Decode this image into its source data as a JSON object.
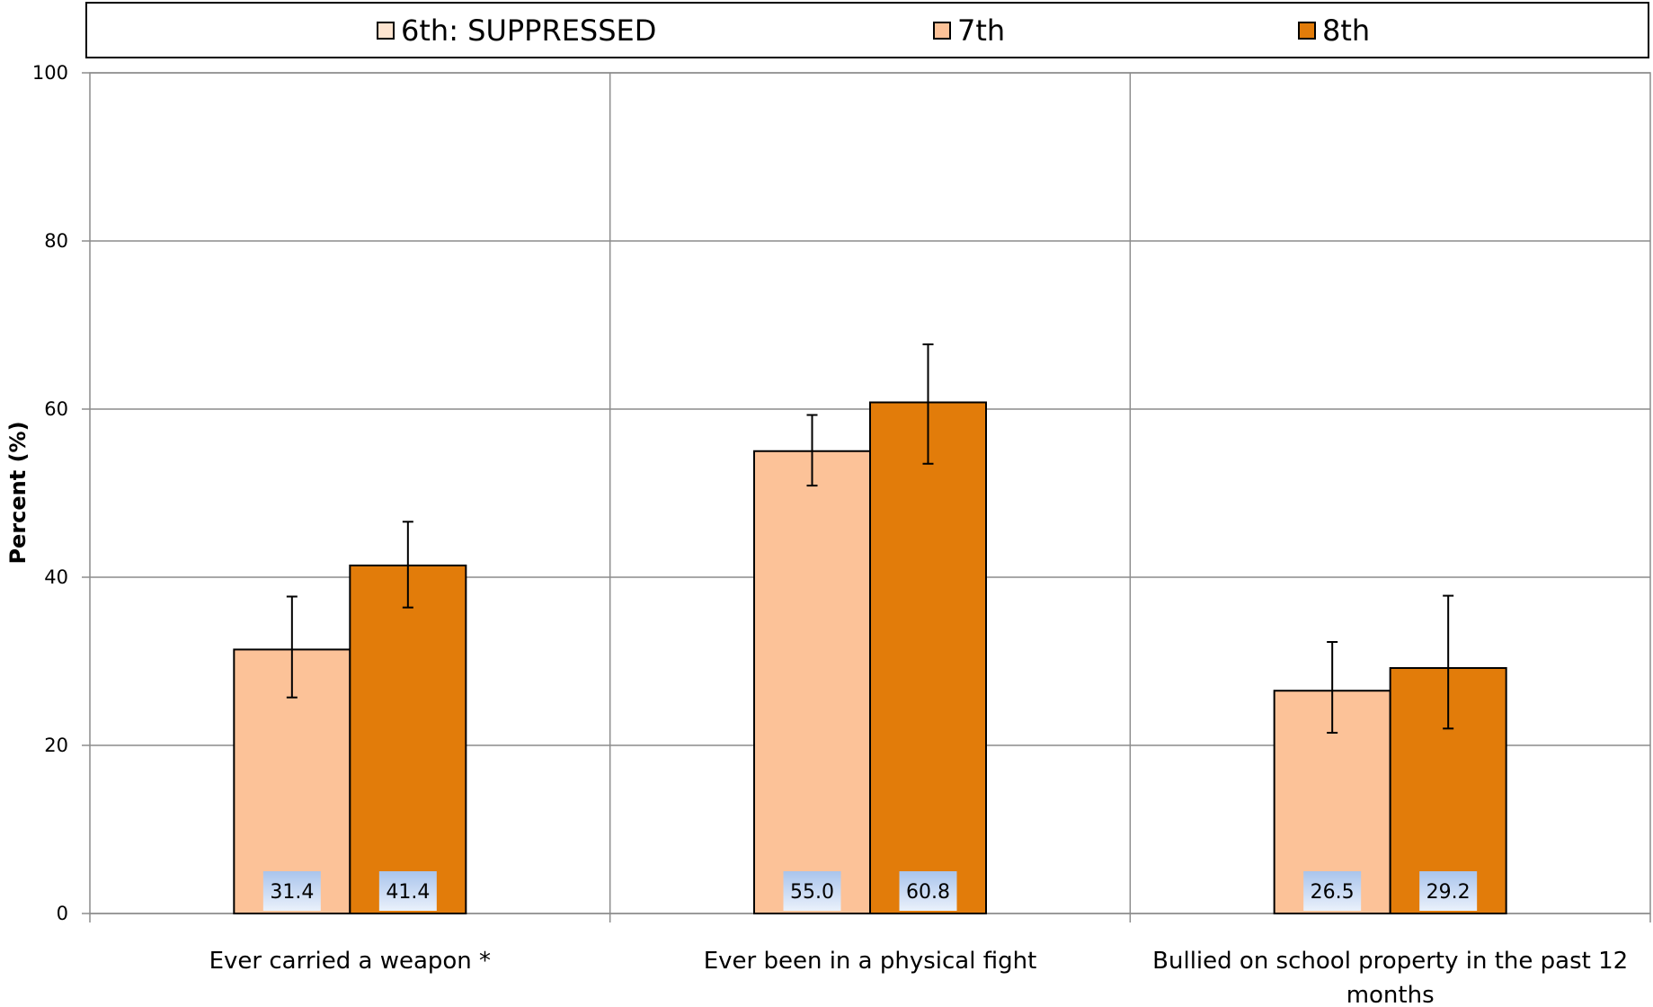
{
  "chart_data": {
    "type": "bar",
    "categories": [
      [
        "Ever carried a weapon *"
      ],
      [
        "Ever been in a physical fight"
      ],
      [
        "Bullied on school property in the past 12",
        "months"
      ]
    ],
    "series": [
      {
        "name": "6th: SUPPRESSED",
        "color": "#fde4d0",
        "values": [
          null,
          null,
          null
        ],
        "error_low": [
          null,
          null,
          null
        ],
        "error_high": [
          null,
          null,
          null
        ]
      },
      {
        "name": "7th",
        "color": "#fcc298",
        "values": [
          31.4,
          55.0,
          26.5
        ],
        "error_low": [
          25.7,
          50.9,
          21.5
        ],
        "error_high": [
          37.7,
          59.3,
          32.3
        ]
      },
      {
        "name": "8th",
        "color": "#e27c0a",
        "values": [
          41.4,
          60.8,
          29.2
        ],
        "error_low": [
          36.4,
          53.5,
          22.0
        ],
        "error_high": [
          46.6,
          67.7,
          37.8
        ]
      }
    ],
    "data_labels": [
      [
        "",
        "31.4",
        "41.4"
      ],
      [
        "",
        "55.0",
        "60.8"
      ],
      [
        "",
        "26.5",
        "29.2"
      ]
    ],
    "ylabel": "Percent (%)",
    "xlabel": "",
    "ylim": [
      0,
      100
    ],
    "yticks": [
      "0",
      "20",
      "40",
      "60",
      "80",
      "100"
    ],
    "grid": true,
    "legend_position": "top",
    "error_bars": true
  }
}
